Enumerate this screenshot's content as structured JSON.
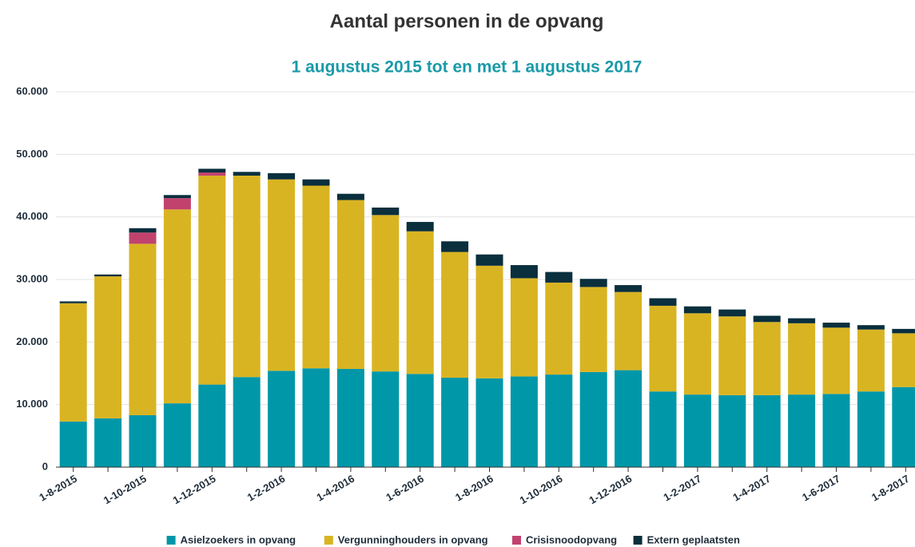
{
  "chart_data": {
    "type": "stacked_bar",
    "title": "Aantal personen in de opvang",
    "subtitle": "1 augustus 2015 tot en met 1 augustus 2017",
    "categories": [
      "1-8-2015",
      null,
      "1-10-2015",
      null,
      "1-12-2015",
      null,
      "1-2-2016",
      null,
      "1-4-2016",
      null,
      "1-6-2016",
      null,
      "1-8-2016",
      null,
      "1-10-2016",
      null,
      "1-12-2016",
      null,
      "1-2-2017",
      null,
      "1-4-2017",
      null,
      "1-6-2017",
      null,
      "1-8-2017"
    ],
    "series": [
      {
        "name": "Asielzoekers in opvang",
        "color": "#0097a9",
        "values": [
          7300,
          7800,
          8300,
          10200,
          13200,
          14400,
          15400,
          15800,
          15700,
          15300,
          14900,
          14300,
          14200,
          14500,
          14800,
          15200,
          15500,
          12100,
          11600,
          11500,
          11500,
          11600,
          11700,
          12100,
          12800
        ]
      },
      {
        "name": "Vergunninghouders in opvang",
        "color": "#d9b422",
        "values": [
          18900,
          22700,
          27400,
          31000,
          33400,
          32200,
          30600,
          29200,
          27000,
          25000,
          22800,
          20100,
          18000,
          15700,
          14700,
          13600,
          12500,
          13700,
          13000,
          12600,
          11700,
          11400,
          10600,
          9900,
          8600
        ]
      },
      {
        "name": "Crisisnoodopvang",
        "color": "#c2426e",
        "values": [
          0,
          0,
          1800,
          1800,
          500,
          0,
          0,
          0,
          0,
          0,
          0,
          0,
          0,
          0,
          0,
          0,
          0,
          0,
          0,
          0,
          0,
          0,
          0,
          0,
          0
        ]
      },
      {
        "name": "Extern geplaatsten",
        "color": "#0a2f3d",
        "values": [
          300,
          300,
          700,
          500,
          600,
          600,
          1000,
          1000,
          1000,
          1200,
          1500,
          1700,
          1800,
          2100,
          1700,
          1300,
          1100,
          1200,
          1100,
          1100,
          1000,
          800,
          800,
          700,
          700
        ]
      }
    ],
    "ylim": [
      0,
      60000
    ],
    "yticks": [
      0,
      {
        "value": 10000,
        "label": "10.000"
      },
      {
        "value": 20000,
        "label": "20.000"
      },
      {
        "value": 30000,
        "label": "30.000"
      },
      {
        "value": 40000,
        "label": "40.000"
      },
      {
        "value": 50000,
        "label": "50.000"
      },
      {
        "value": 60000,
        "label": "60.000"
      }
    ],
    "grid": true,
    "legend": "bottom"
  }
}
